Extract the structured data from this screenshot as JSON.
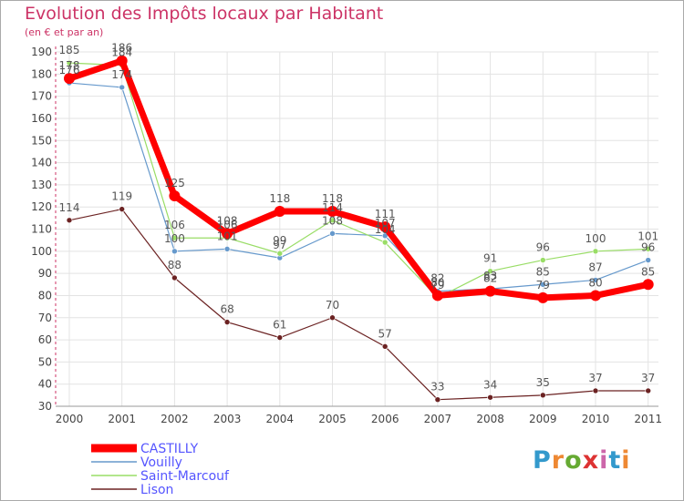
{
  "title": "Evolution des Impôts locaux par Habitant",
  "subtitle": "(en € et par an)",
  "logo": {
    "text": "Proxiti"
  },
  "chart_data": {
    "type": "line",
    "title": "Evolution des Impôts locaux par Habitant",
    "ylabel": "(en € et par an)",
    "xlabel": "",
    "ylim": [
      30,
      190
    ],
    "yticks": [
      30,
      40,
      50,
      60,
      70,
      80,
      90,
      100,
      110,
      120,
      130,
      140,
      150,
      160,
      170,
      180,
      190
    ],
    "categories": [
      "2000",
      "2001",
      "2002",
      "2003",
      "2004",
      "2005",
      "2006",
      "2007",
      "2008",
      "2009",
      "2010",
      "2011"
    ],
    "grid": true,
    "legend_position": "bottom-left",
    "series": [
      {
        "name": "CASTILLY",
        "color": "#ff0000",
        "values": [
          178,
          186,
          125,
          108,
          118,
          118,
          111,
          80,
          82,
          79,
          80,
          85
        ]
      },
      {
        "name": "Vouilly",
        "color": "#6699cc",
        "values": [
          176,
          174,
          100,
          101,
          97,
          108,
          107,
          82,
          83,
          85,
          87,
          96
        ]
      },
      {
        "name": "Saint-Marcouf",
        "color": "#99dd66",
        "values": [
          185,
          184,
          106,
          106,
          99,
          114,
          104,
          79,
          91,
          96,
          100,
          101
        ]
      },
      {
        "name": "Lison",
        "color": "#6b2222",
        "values": [
          114,
          119,
          88,
          68,
          61,
          70,
          57,
          33,
          34,
          35,
          37,
          37
        ]
      }
    ]
  }
}
